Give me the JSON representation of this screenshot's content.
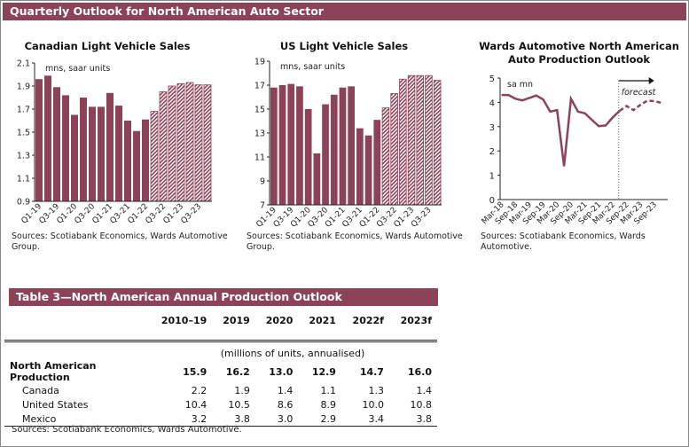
{
  "header": {
    "title": "Quarterly Outlook for North American Auto Sector"
  },
  "colors": {
    "bar": "#8c4257",
    "banner": "#8c4257"
  },
  "chart_data": [
    {
      "type": "bar",
      "title": "Canadian Light Vehicle Sales",
      "unit_label": "mns, saar units",
      "categories": [
        "Q1-19",
        "Q2-19",
        "Q3-19",
        "Q4-19",
        "Q1-20",
        "Q2-20",
        "Q3-20",
        "Q4-20",
        "Q1-21",
        "Q2-21",
        "Q3-21",
        "Q4-21",
        "Q1-22",
        "Q2-22",
        "Q3-22",
        "Q4-22",
        "Q1-23",
        "Q2-23",
        "Q3-23",
        "Q4-23"
      ],
      "tick_labels": [
        "Q1-19",
        "Q3-19",
        "Q1-20",
        "Q3-20",
        "Q1-21",
        "Q3-21",
        "Q1-22",
        "Q3-22",
        "Q1-23",
        "Q3-23"
      ],
      "values": [
        1.96,
        1.99,
        1.89,
        1.82,
        1.65,
        1.8,
        1.72,
        1.72,
        1.84,
        1.73,
        1.6,
        1.51,
        1.61,
        1.68,
        1.85,
        1.9,
        1.92,
        1.93,
        1.91,
        1.91
      ],
      "forecast_from": "Q2-22",
      "ylim": [
        0.9,
        2.1
      ],
      "yticks": [
        "2.1",
        "1.9",
        "1.7",
        "1.5",
        "1.3",
        "1.1",
        "0.9"
      ],
      "source": "Sources: Scotiabank Economics, Wards Automotive Group."
    },
    {
      "type": "bar",
      "title": "US Light Vehicle Sales",
      "unit_label": "mns, saar units",
      "categories": [
        "Q1-19",
        "Q2-19",
        "Q3-19",
        "Q4-19",
        "Q1-20",
        "Q2-20",
        "Q3-20",
        "Q4-20",
        "Q1-21",
        "Q2-21",
        "Q3-21",
        "Q4-21",
        "Q1-22",
        "Q2-22",
        "Q3-22",
        "Q4-22",
        "Q1-23",
        "Q2-23",
        "Q3-23",
        "Q4-23"
      ],
      "tick_labels": [
        "Q1-19",
        "Q3-19",
        "Q1-20",
        "Q3-20",
        "Q1-21",
        "Q3-21",
        "Q1-22",
        "Q3-22",
        "Q1-23",
        "Q3-23"
      ],
      "values": [
        16.8,
        17.0,
        17.1,
        16.9,
        15.0,
        11.3,
        15.4,
        16.2,
        16.8,
        16.9,
        13.4,
        12.8,
        14.1,
        15.1,
        16.3,
        17.5,
        17.8,
        17.8,
        17.8,
        17.4
      ],
      "forecast_from": "Q2-22",
      "ylim": [
        7,
        19
      ],
      "yticks": [
        "19",
        "17",
        "15",
        "13",
        "11",
        "9",
        "7"
      ],
      "source": "Sources: Scotiabank Economics, Wards Automotive Group."
    },
    {
      "type": "line",
      "title": "Wards Automotive North American Auto Production Outlook",
      "unit_label": "sa mn",
      "annotation": "forecast",
      "x": [
        "Mar-18",
        "Jun-18",
        "Sep-18",
        "Dec-18",
        "Mar-19",
        "Jun-19",
        "Sep-19",
        "Dec-19",
        "Mar-20",
        "Jun-20",
        "Sep-20",
        "Dec-20",
        "Mar-21",
        "Jun-21",
        "Sep-21",
        "Dec-21",
        "Mar-22",
        "Jun-22",
        "Sep-22",
        "Dec-22",
        "Mar-23",
        "Jun-23",
        "Sep-23",
        "Dec-23"
      ],
      "tick_labels": [
        "Mar-18",
        "Sep-18",
        "Mar-19",
        "Sep-19",
        "Mar-20",
        "Sep-20",
        "Mar-21",
        "Sep-21",
        "Mar-22",
        "Sep-22",
        "Mar-23",
        "Sep-23"
      ],
      "values": [
        4.3,
        4.3,
        4.15,
        4.08,
        4.18,
        4.28,
        4.12,
        3.62,
        3.68,
        1.37,
        4.15,
        3.62,
        3.55,
        3.28,
        3.02,
        3.05,
        3.38,
        3.65,
        3.85,
        3.68,
        3.9,
        4.07,
        4.05,
        3.98
      ],
      "forecast_from": "Jun-22",
      "ylim": [
        0,
        5
      ],
      "yticks": [
        "5",
        "4",
        "3",
        "2",
        "1",
        "0"
      ],
      "source": "Sources: Scotiabank Economics, Wards Automotive."
    }
  ],
  "table": {
    "title": "Table 3—North American Annual Production Outlook",
    "columns": [
      "2010–19",
      "2019",
      "2020",
      "2021",
      "2022f",
      "2023f"
    ],
    "unit_note": "(millions of units, annualised)",
    "rows": [
      {
        "label": "North American Production",
        "values": [
          "15.9",
          "16.2",
          "13.0",
          "12.9",
          "14.7",
          "16.0"
        ]
      },
      {
        "label": "Canada",
        "values": [
          "2.2",
          "1.9",
          "1.4",
          "1.1",
          "1.3",
          "1.4"
        ]
      },
      {
        "label": "United States",
        "values": [
          "10.4",
          "10.5",
          "8.6",
          "8.9",
          "10.0",
          "10.8"
        ]
      },
      {
        "label": "Mexico",
        "values": [
          "3.2",
          "3.8",
          "3.0",
          "2.9",
          "3.4",
          "3.8"
        ]
      }
    ],
    "source": "Sources: Scotiabank Economics, Wards Automotive."
  }
}
